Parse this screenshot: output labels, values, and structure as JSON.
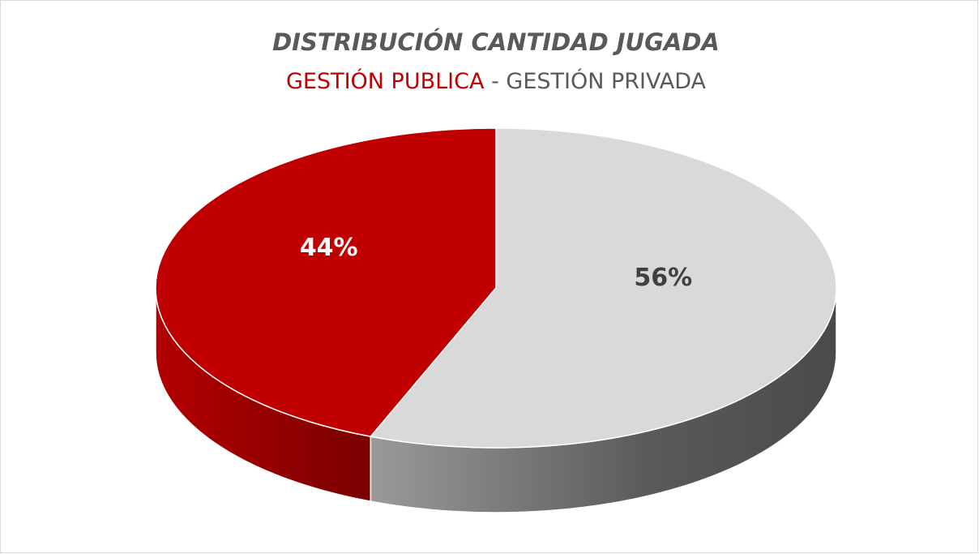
{
  "chart_data": {
    "type": "pie",
    "title": "DISTRIBUCIÓN CANTIDAD JUGADA",
    "categories": [
      "GESTIÓN PUBLICA",
      "GESTIÓN PRIVADA"
    ],
    "subtitle_separator": "-",
    "values": [
      44,
      56
    ],
    "value_labels": [
      "44%",
      "56%"
    ],
    "colors": [
      "#c00000",
      "#d9d9d9"
    ]
  }
}
